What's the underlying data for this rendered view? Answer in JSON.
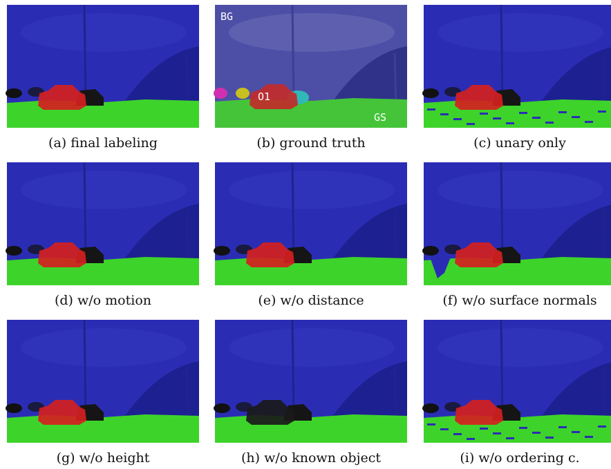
{
  "panels": [
    {
      "caption": "(a) final labeling"
    },
    {
      "caption": "(b) ground truth",
      "labels": {
        "bg": "BG",
        "o1": "O1",
        "gs": "GS"
      }
    },
    {
      "caption": "(c) unary only"
    },
    {
      "caption": "(d) w/o motion"
    },
    {
      "caption": "(e) w/o distance"
    },
    {
      "caption": "(f) w/o surface normals"
    },
    {
      "caption": "(g) w/o height"
    },
    {
      "caption": "(h) w/o known object"
    },
    {
      "caption": "(i) w/o ordering c."
    }
  ]
}
